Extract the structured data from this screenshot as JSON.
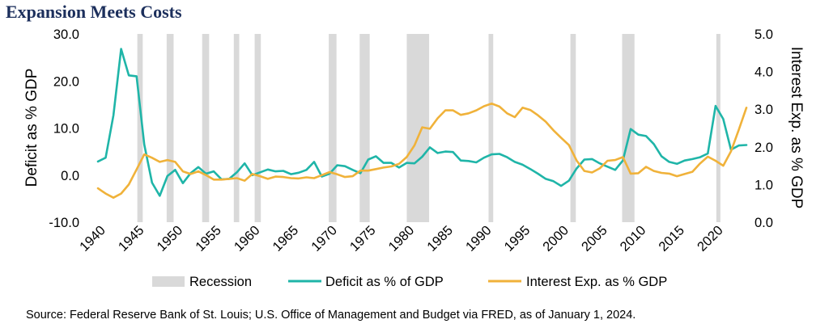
{
  "header": {
    "title": "Expansion Meets Costs"
  },
  "footer": {
    "source": "Source: Federal Reserve Bank of St. Louis; U.S. Office of Management and Budget via FRED, as of January 1, 2024."
  },
  "colors": {
    "recession": "#d9d9d9",
    "deficit": "#1fb5a8",
    "interest": "#f0b23a",
    "title": "#1c2f5c"
  },
  "chart_data": {
    "type": "line",
    "title": "Expansion Meets Costs",
    "ylabel": "Deficit as % GDP",
    "y2label": "Interest Exp. as % GDP",
    "xlim": [
      1940,
      2023
    ],
    "ylim": [
      -10,
      30
    ],
    "y2lim": [
      0,
      5
    ],
    "yticks": [
      "30.0",
      "20.0",
      "10.0",
      "0.0",
      "-10.0"
    ],
    "y2ticks": [
      "5.0",
      "4.0",
      "3.0",
      "2.0",
      "1.0",
      "0.0"
    ],
    "xticks": [
      "1940",
      "1945",
      "1950",
      "1955",
      "1960",
      "1965",
      "1970",
      "1975",
      "1980",
      "1985",
      "1990",
      "1995",
      "2000",
      "2005",
      "2010",
      "2015",
      "2020"
    ],
    "legend": {
      "position": "bottom",
      "items": [
        "Recession",
        "Deficit as % of GDP",
        "Interest Exp. as % GDP"
      ]
    },
    "recessions": [
      [
        1945.1,
        1945.8
      ],
      [
        1948.9,
        1949.8
      ],
      [
        1953.5,
        1954.4
      ],
      [
        1957.6,
        1958.3
      ],
      [
        1960.3,
        1961.1
      ],
      [
        1969.9,
        1970.9
      ],
      [
        1973.9,
        1975.2
      ],
      [
        1980.0,
        1982.9
      ],
      [
        1990.6,
        1991.2
      ],
      [
        2001.2,
        2001.9
      ],
      [
        2007.9,
        2009.5
      ],
      [
        2020.1,
        2020.4
      ]
    ],
    "series": [
      {
        "name": "Deficit as % of GDP",
        "axis": "left",
        "points": [
          [
            1940,
            2.9
          ],
          [
            1941,
            3.7
          ],
          [
            1942,
            12.7
          ],
          [
            1943,
            26.8
          ],
          [
            1944,
            21.2
          ],
          [
            1945,
            21.0
          ],
          [
            1946,
            6.5
          ],
          [
            1947,
            -1.6
          ],
          [
            1948,
            -4.4
          ],
          [
            1949,
            -0.2
          ],
          [
            1950,
            1.1
          ],
          [
            1951,
            -1.7
          ],
          [
            1952,
            0.4
          ],
          [
            1953,
            1.7
          ],
          [
            1954,
            0.3
          ],
          [
            1955,
            0.8
          ],
          [
            1956,
            -0.9
          ],
          [
            1957,
            -0.8
          ],
          [
            1958,
            0.6
          ],
          [
            1959,
            2.5
          ],
          [
            1960,
            0.0
          ],
          [
            1961,
            0.6
          ],
          [
            1962,
            1.2
          ],
          [
            1963,
            0.8
          ],
          [
            1964,
            0.9
          ],
          [
            1965,
            0.2
          ],
          [
            1966,
            0.5
          ],
          [
            1967,
            1.1
          ],
          [
            1968,
            2.8
          ],
          [
            1969,
            -0.3
          ],
          [
            1970,
            0.3
          ],
          [
            1971,
            2.1
          ],
          [
            1972,
            1.9
          ],
          [
            1973,
            1.1
          ],
          [
            1974,
            0.4
          ],
          [
            1975,
            3.3
          ],
          [
            1976,
            4.0
          ],
          [
            1977,
            2.6
          ],
          [
            1978,
            2.6
          ],
          [
            1979,
            1.6
          ],
          [
            1980,
            2.6
          ],
          [
            1981,
            2.5
          ],
          [
            1982,
            3.9
          ],
          [
            1983,
            5.9
          ],
          [
            1984,
            4.7
          ],
          [
            1985,
            5.0
          ],
          [
            1986,
            4.9
          ],
          [
            1987,
            3.1
          ],
          [
            1988,
            3.0
          ],
          [
            1989,
            2.7
          ],
          [
            1990,
            3.7
          ],
          [
            1991,
            4.4
          ],
          [
            1992,
            4.5
          ],
          [
            1993,
            3.8
          ],
          [
            1994,
            2.8
          ],
          [
            1995,
            2.2
          ],
          [
            1996,
            1.3
          ],
          [
            1997,
            0.3
          ],
          [
            1998,
            -0.8
          ],
          [
            1999,
            -1.3
          ],
          [
            2000,
            -2.3
          ],
          [
            2001,
            -1.2
          ],
          [
            2002,
            1.4
          ],
          [
            2003,
            3.3
          ],
          [
            2004,
            3.4
          ],
          [
            2005,
            2.5
          ],
          [
            2006,
            1.8
          ],
          [
            2007,
            1.1
          ],
          [
            2008,
            3.1
          ],
          [
            2009,
            9.8
          ],
          [
            2010,
            8.6
          ],
          [
            2011,
            8.3
          ],
          [
            2012,
            6.6
          ],
          [
            2013,
            4.0
          ],
          [
            2014,
            2.8
          ],
          [
            2015,
            2.4
          ],
          [
            2016,
            3.1
          ],
          [
            2017,
            3.4
          ],
          [
            2018,
            3.8
          ],
          [
            2019,
            4.6
          ],
          [
            2020,
            14.7
          ],
          [
            2021,
            11.9
          ],
          [
            2022,
            5.4
          ],
          [
            2023,
            6.3
          ],
          [
            2024,
            6.4
          ]
        ]
      },
      {
        "name": "Interest Exp. as % GDP",
        "axis": "right",
        "points": [
          [
            1940,
            0.9
          ],
          [
            1941,
            0.76
          ],
          [
            1942,
            0.65
          ],
          [
            1943,
            0.76
          ],
          [
            1944,
            1.0
          ],
          [
            1945,
            1.4
          ],
          [
            1946,
            1.8
          ],
          [
            1947,
            1.71
          ],
          [
            1948,
            1.6
          ],
          [
            1949,
            1.65
          ],
          [
            1950,
            1.6
          ],
          [
            1951,
            1.35
          ],
          [
            1952,
            1.28
          ],
          [
            1953,
            1.35
          ],
          [
            1954,
            1.25
          ],
          [
            1955,
            1.13
          ],
          [
            1956,
            1.13
          ],
          [
            1957,
            1.15
          ],
          [
            1958,
            1.17
          ],
          [
            1959,
            1.1
          ],
          [
            1960,
            1.28
          ],
          [
            1961,
            1.22
          ],
          [
            1962,
            1.15
          ],
          [
            1963,
            1.21
          ],
          [
            1964,
            1.2
          ],
          [
            1965,
            1.17
          ],
          [
            1966,
            1.16
          ],
          [
            1967,
            1.19
          ],
          [
            1968,
            1.17
          ],
          [
            1969,
            1.25
          ],
          [
            1970,
            1.33
          ],
          [
            1971,
            1.27
          ],
          [
            1972,
            1.2
          ],
          [
            1973,
            1.22
          ],
          [
            1974,
            1.37
          ],
          [
            1975,
            1.37
          ],
          [
            1976,
            1.41
          ],
          [
            1977,
            1.45
          ],
          [
            1978,
            1.48
          ],
          [
            1979,
            1.55
          ],
          [
            1980,
            1.73
          ],
          [
            1981,
            2.04
          ],
          [
            1982,
            2.52
          ],
          [
            1983,
            2.48
          ],
          [
            1984,
            2.76
          ],
          [
            1985,
            2.97
          ],
          [
            1986,
            2.97
          ],
          [
            1987,
            2.85
          ],
          [
            1988,
            2.89
          ],
          [
            1989,
            2.97
          ],
          [
            1990,
            3.08
          ],
          [
            1991,
            3.15
          ],
          [
            1992,
            3.07
          ],
          [
            1993,
            2.89
          ],
          [
            1994,
            2.79
          ],
          [
            1995,
            3.04
          ],
          [
            1996,
            2.98
          ],
          [
            1997,
            2.84
          ],
          [
            1998,
            2.67
          ],
          [
            1999,
            2.44
          ],
          [
            2000,
            2.24
          ],
          [
            2001,
            2.05
          ],
          [
            2002,
            1.64
          ],
          [
            2003,
            1.36
          ],
          [
            2004,
            1.32
          ],
          [
            2005,
            1.43
          ],
          [
            2006,
            1.63
          ],
          [
            2007,
            1.65
          ],
          [
            2008,
            1.73
          ],
          [
            2009,
            1.29
          ],
          [
            2010,
            1.3
          ],
          [
            2011,
            1.47
          ],
          [
            2012,
            1.36
          ],
          [
            2013,
            1.31
          ],
          [
            2014,
            1.29
          ],
          [
            2015,
            1.22
          ],
          [
            2016,
            1.28
          ],
          [
            2017,
            1.34
          ],
          [
            2018,
            1.56
          ],
          [
            2019,
            1.74
          ],
          [
            2020,
            1.63
          ],
          [
            2021,
            1.5
          ],
          [
            2022,
            1.88
          ],
          [
            2023,
            2.45
          ],
          [
            2024,
            3.04
          ]
        ]
      }
    ]
  }
}
